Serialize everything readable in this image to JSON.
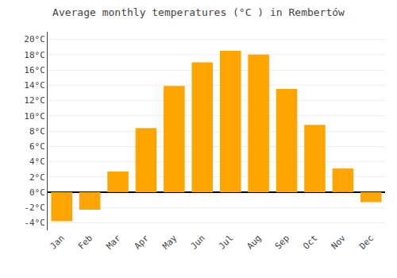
{
  "chart_data": {
    "type": "bar",
    "title": "Average monthly temperatures (°C ) in Rembertów",
    "categories": [
      "Jan",
      "Feb",
      "Mar",
      "Apr",
      "May",
      "Jun",
      "Jul",
      "Aug",
      "Sep",
      "Oct",
      "Nov",
      "Dec"
    ],
    "values": [
      -3.8,
      -2.3,
      2.7,
      8.4,
      13.9,
      17.0,
      18.5,
      18.0,
      13.5,
      8.8,
      3.1,
      -1.3
    ],
    "color": "#FFA500",
    "ylim": [
      -5,
      21
    ],
    "yticks": [
      {
        "value": -4,
        "label": "-4°C"
      },
      {
        "value": -2,
        "label": "-2°C"
      },
      {
        "value": 0,
        "label": "0°C"
      },
      {
        "value": 2,
        "label": "2°C"
      },
      {
        "value": 4,
        "label": "4°C"
      },
      {
        "value": 6,
        "label": "6°C"
      },
      {
        "value": 8,
        "label": "8°C"
      },
      {
        "value": 10,
        "label": "10°C"
      },
      {
        "value": 12,
        "label": "12°C"
      },
      {
        "value": 14,
        "label": "14°C"
      },
      {
        "value": 16,
        "label": "16°C"
      },
      {
        "value": 18,
        "label": "18°C"
      },
      {
        "value": 20,
        "label": "20°C"
      }
    ],
    "grid": true
  }
}
